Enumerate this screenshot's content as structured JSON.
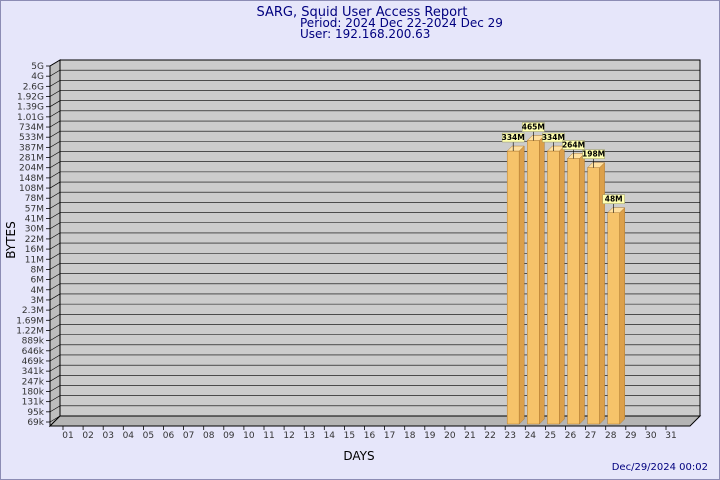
{
  "chart_data": {
    "type": "bar",
    "title": "SARG, Squid User Access Report",
    "period": "Period: 2024 Dec 22-2024 Dec 29",
    "user": "User: 192.168.200.63",
    "xlabel": "DAYS",
    "ylabel": "BYTES",
    "categories": [
      "01",
      "02",
      "03",
      "04",
      "05",
      "06",
      "07",
      "08",
      "09",
      "10",
      "11",
      "12",
      "13",
      "14",
      "15",
      "16",
      "17",
      "18",
      "19",
      "20",
      "21",
      "22",
      "23",
      "24",
      "25",
      "26",
      "27",
      "28",
      "29",
      "30",
      "31"
    ],
    "y_tick_labels": [
      "69k",
      "95k",
      "131k",
      "180k",
      "247k",
      "341k",
      "469k",
      "646k",
      "889k",
      "1.22M",
      "1.69M",
      "2.3M",
      "3M",
      "4M",
      "6M",
      "8M",
      "11M",
      "16M",
      "22M",
      "30M",
      "41M",
      "57M",
      "78M",
      "108M",
      "148M",
      "204M",
      "281M",
      "387M",
      "533M",
      "734M",
      "1.01G",
      "1.39G",
      "1.92G",
      "2.6G",
      "4G",
      "5G"
    ],
    "scale": "log",
    "grid": true,
    "series": [
      {
        "values": [
          null,
          null,
          null,
          null,
          null,
          null,
          null,
          null,
          null,
          null,
          null,
          null,
          null,
          null,
          null,
          null,
          null,
          null,
          null,
          null,
          null,
          null,
          334000000,
          465000000,
          334000000,
          264000000,
          198000000,
          48000000,
          null,
          null,
          null
        ]
      }
    ],
    "value_labels": [
      null,
      null,
      null,
      null,
      null,
      null,
      null,
      null,
      null,
      null,
      null,
      null,
      null,
      null,
      null,
      null,
      null,
      null,
      null,
      null,
      null,
      null,
      "334M",
      "465M",
      "334M",
      "264M",
      "198M",
      "48M",
      null,
      null,
      null
    ],
    "timestamp": "Dec/29/2024 00:02",
    "colors": {
      "bar": "#f6c36a",
      "bar_dark": "#dca04a",
      "plot_bg": "#cccccc",
      "label_bg": "#ffffb0"
    }
  }
}
